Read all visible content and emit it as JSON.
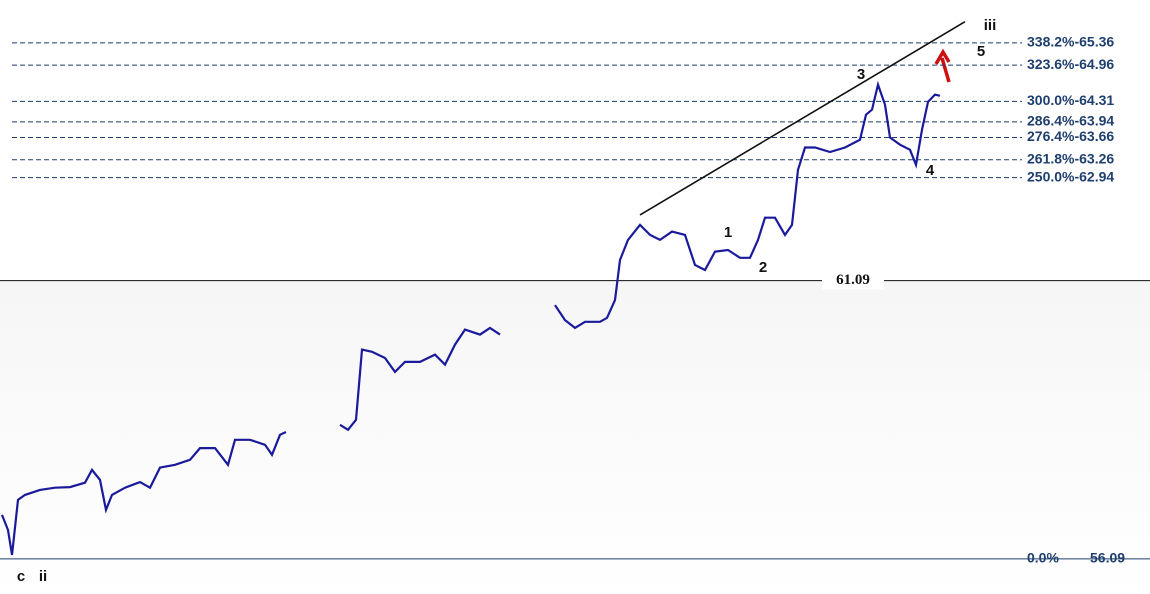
{
  "chart_data": {
    "type": "line",
    "xlim": [
      0,
      230
    ],
    "ylim": [
      55.46,
      66.13
    ],
    "x": [
      0.4,
      1.6,
      2.4,
      3.6,
      5,
      8,
      11,
      14,
      17,
      18.4,
      20,
      21.2,
      22.4,
      25,
      28,
      30,
      32,
      35,
      38,
      40,
      43,
      45.6,
      47,
      50,
      53,
      54.4,
      56,
      57.2,
      62.6,
      68,
      69.6,
      71.2,
      72.4,
      74.4,
      77,
      79,
      81,
      84,
      87,
      89,
      91,
      93,
      96,
      98,
      100,
      105.5,
      111,
      113,
      115,
      117,
      120,
      121.4,
      123,
      124,
      125.6,
      128,
      130,
      132,
      134.4,
      137,
      139,
      141,
      143,
      145.6,
      148,
      150,
      151.6,
      153,
      155,
      157,
      158.4,
      159.6,
      161,
      163,
      166,
      169,
      172,
      173.2,
      174.4,
      175.6,
      177,
      178,
      180,
      182,
      183.2,
      184.4,
      185.6,
      187,
      188
    ],
    "series": [
      {
        "color": "#1a1a9c",
        "values": [
          56.88,
          56.61,
          56.16,
          57.15,
          57.24,
          57.33,
          57.37,
          57.38,
          57.46,
          57.69,
          57.51,
          56.97,
          57.24,
          57.37,
          57.47,
          57.37,
          57.73,
          57.78,
          57.87,
          58.08,
          58.08,
          57.78,
          58.23,
          58.23,
          58.14,
          57.96,
          58.32,
          58.37,
          null,
          58.5,
          58.41,
          58.59,
          59.85,
          59.81,
          59.7,
          59.45,
          59.63,
          59.63,
          59.76,
          59.58,
          59.94,
          60.21,
          60.12,
          60.24,
          60.12,
          null,
          60.65,
          60.38,
          60.24,
          60.35,
          60.35,
          60.42,
          60.74,
          61.46,
          61.82,
          62.09,
          61.91,
          61.82,
          61.97,
          61.91,
          61.37,
          61.28,
          61.61,
          61.64,
          61.5,
          61.5,
          61.82,
          62.22,
          62.22,
          61.91,
          62.09,
          63.08,
          63.48,
          63.48,
          63.4,
          63.48,
          63.62,
          64.07,
          64.16,
          64.61,
          64.25,
          63.66,
          63.53,
          63.44,
          63.17,
          63.8,
          64.3,
          64.43,
          64.41
        ]
      }
    ],
    "trendline": {
      "x": [
        128,
        193
      ],
      "values": [
        62.27,
        65.74
      ]
    },
    "levels": [
      {
        "label": "338.2%-65.36",
        "value": 65.36
      },
      {
        "label": "323.6%-64.96",
        "value": 64.96
      },
      {
        "label": "300.0%-64.31",
        "value": 64.31
      },
      {
        "label": "286.4%-63.94",
        "value": 63.94
      },
      {
        "label": "276.4%-63.66",
        "value": 63.66
      },
      {
        "label": "261.8%-63.26",
        "value": 63.26
      },
      {
        "label": "250.0%-62.94",
        "value": 62.94
      }
    ],
    "support": {
      "label": "61.09",
      "value": 61.09
    },
    "base": {
      "percent_label": "0.0%",
      "price_label": "56.09",
      "value": 56.09
    },
    "annotations": [
      "iii",
      "5",
      "3",
      "1",
      "2",
      "4",
      "c",
      "ii"
    ]
  }
}
